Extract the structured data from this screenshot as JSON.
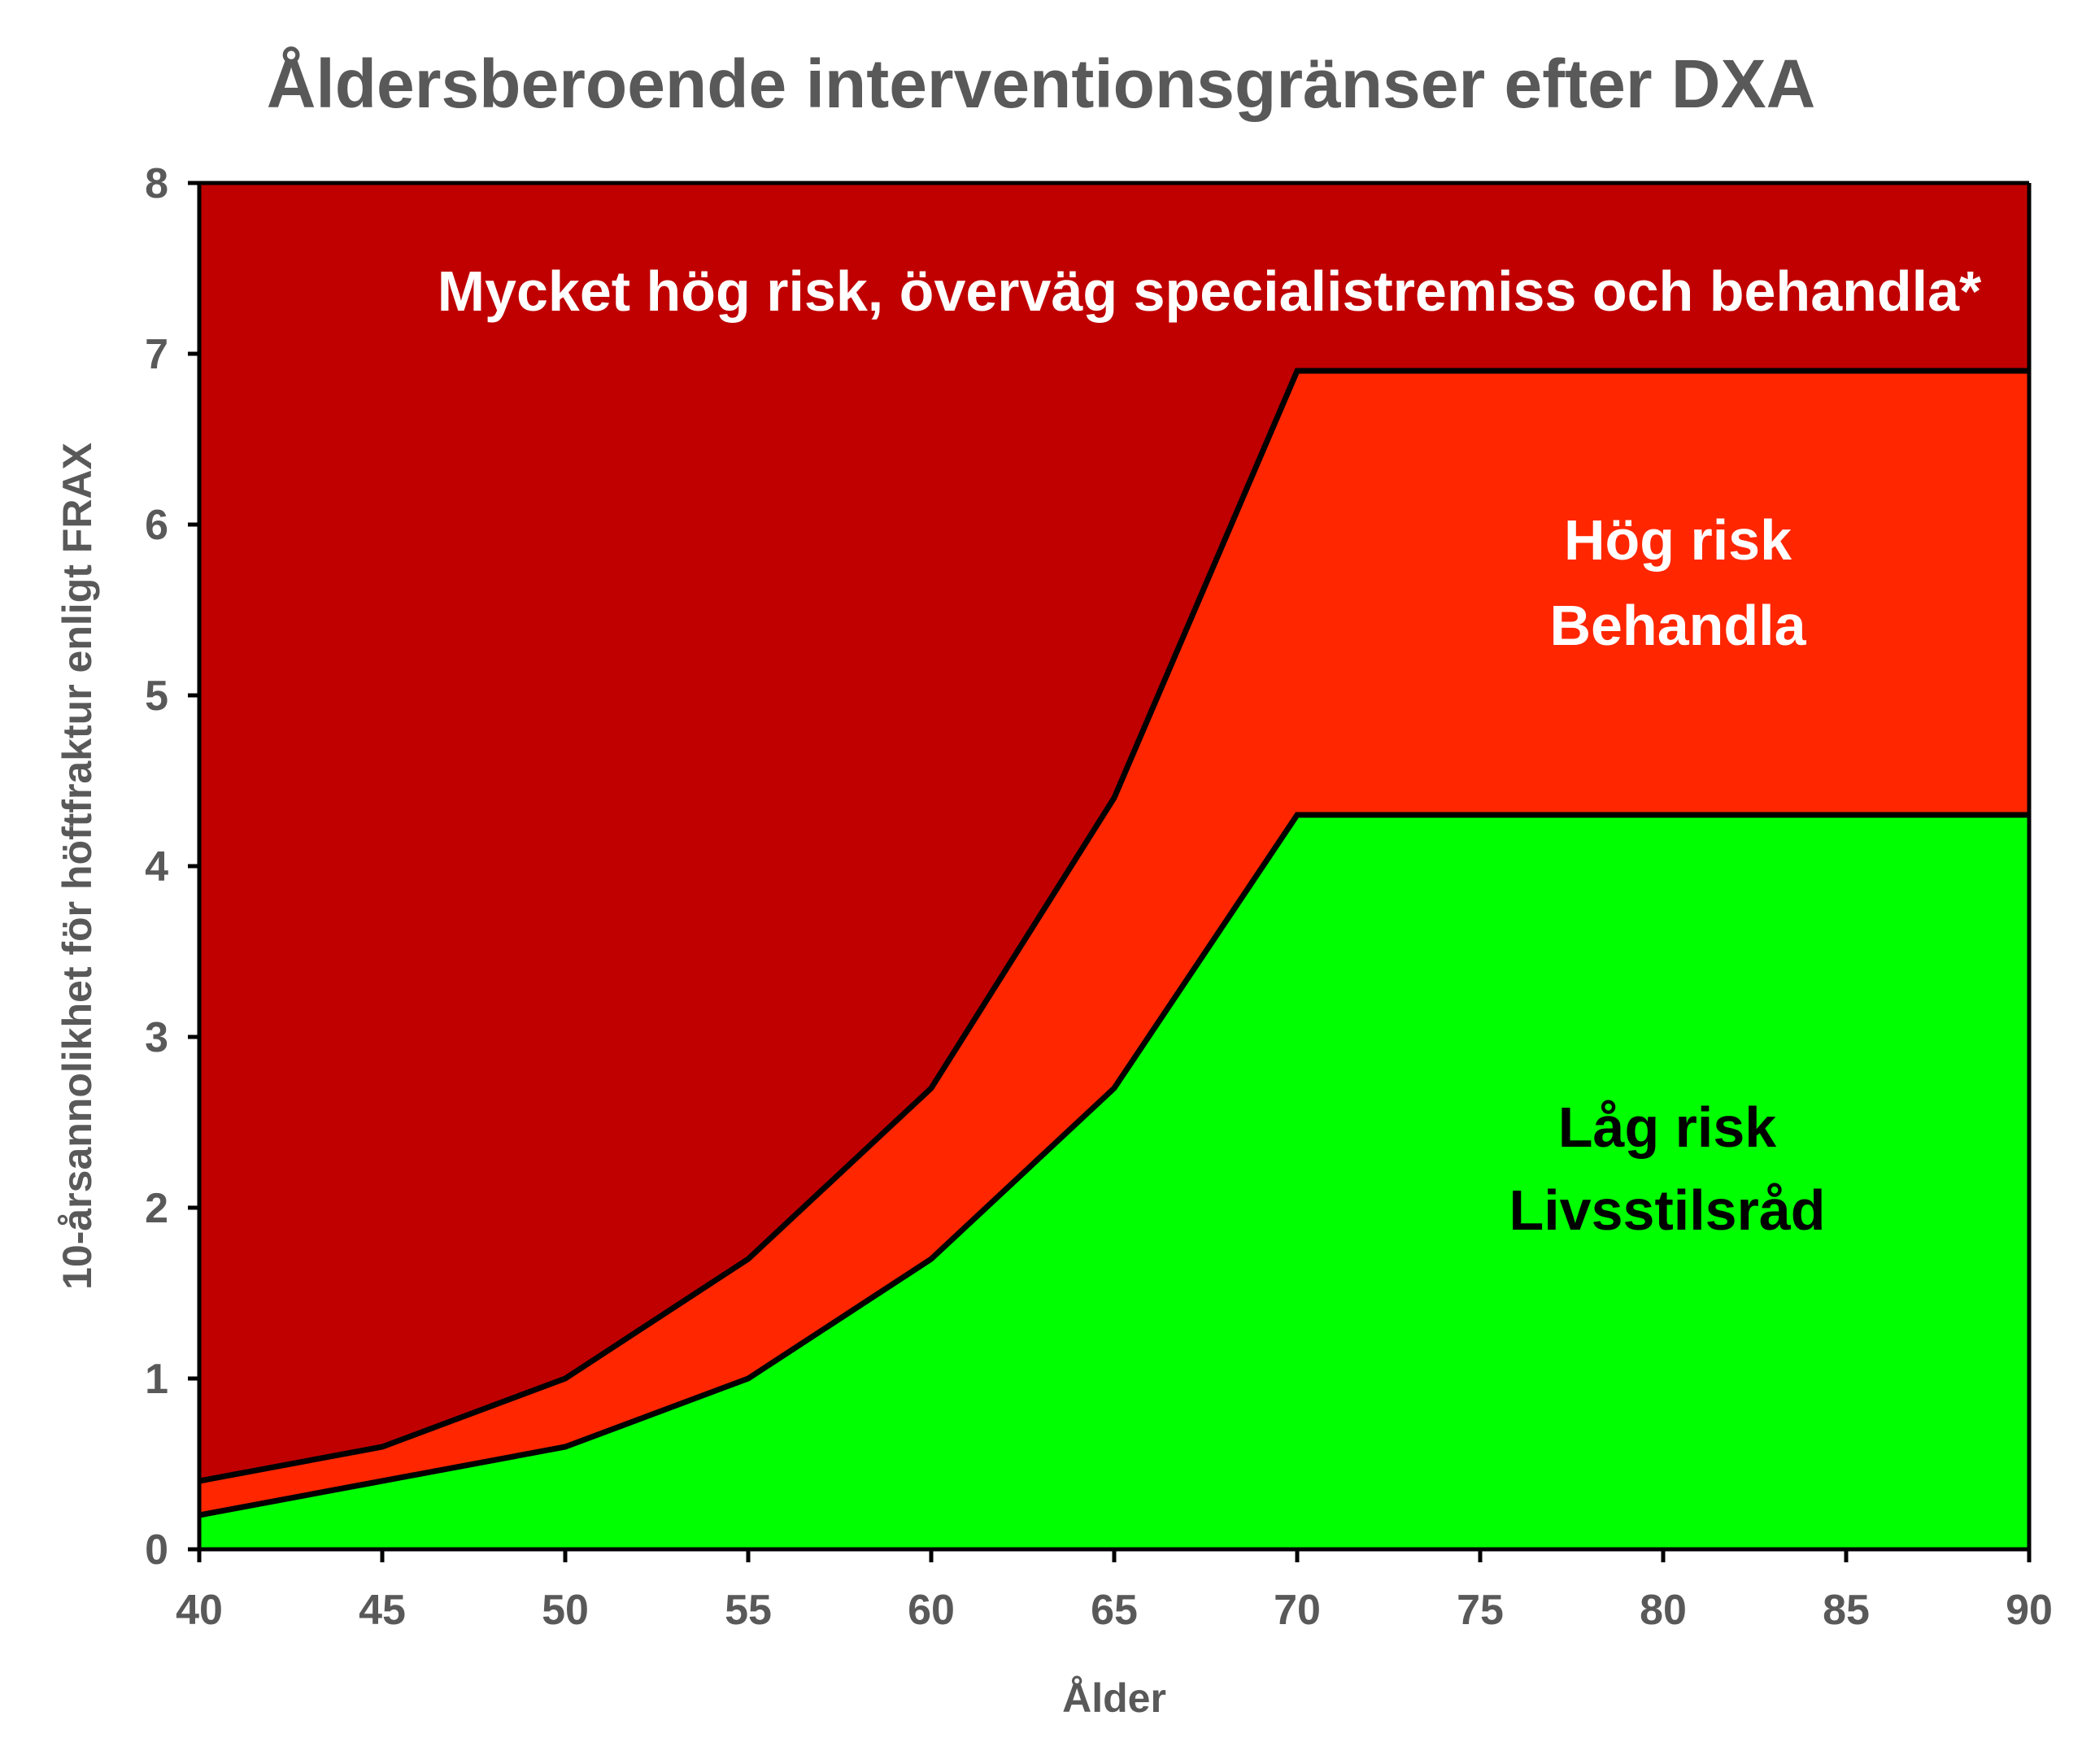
{
  "chart_data": {
    "type": "area",
    "title": "Åldersberoende interventionsgränser efter DXA",
    "xlabel": "Ålder",
    "ylabel": "10-årsannolikhet för höftfraktur enligt FRAX",
    "xlim": [
      40,
      90
    ],
    "ylim": [
      0,
      8
    ],
    "x_ticks": [
      40,
      45,
      50,
      55,
      60,
      65,
      70,
      75,
      80,
      85,
      90
    ],
    "y_ticks": [
      0,
      1,
      2,
      3,
      4,
      5,
      6,
      7,
      8
    ],
    "x": [
      40,
      45,
      50,
      55,
      60,
      65,
      70,
      90
    ],
    "series": [
      {
        "values": [
          0.2,
          0.4,
          0.6,
          1.0,
          1.7,
          2.7,
          4.3,
          4.3
        ],
        "color": "#00ff00"
      },
      {
        "values": [
          0.4,
          0.6,
          1.0,
          1.7,
          2.7,
          4.4,
          6.9,
          6.9
        ],
        "color": "#ff2600"
      }
    ],
    "background_color": "#c00000",
    "grid": false,
    "legend": "none"
  },
  "zones": {
    "very_high": {
      "line1": "Mycket hög risk, överväg specialistremiss och behandla*",
      "color": "#ffffff"
    },
    "high": {
      "line1": "Hög risk",
      "line2": "Behandla",
      "color": "#ffffff"
    },
    "low": {
      "line1": "Låg risk",
      "line2": "Livsstilsråd",
      "color": "#000000"
    }
  }
}
